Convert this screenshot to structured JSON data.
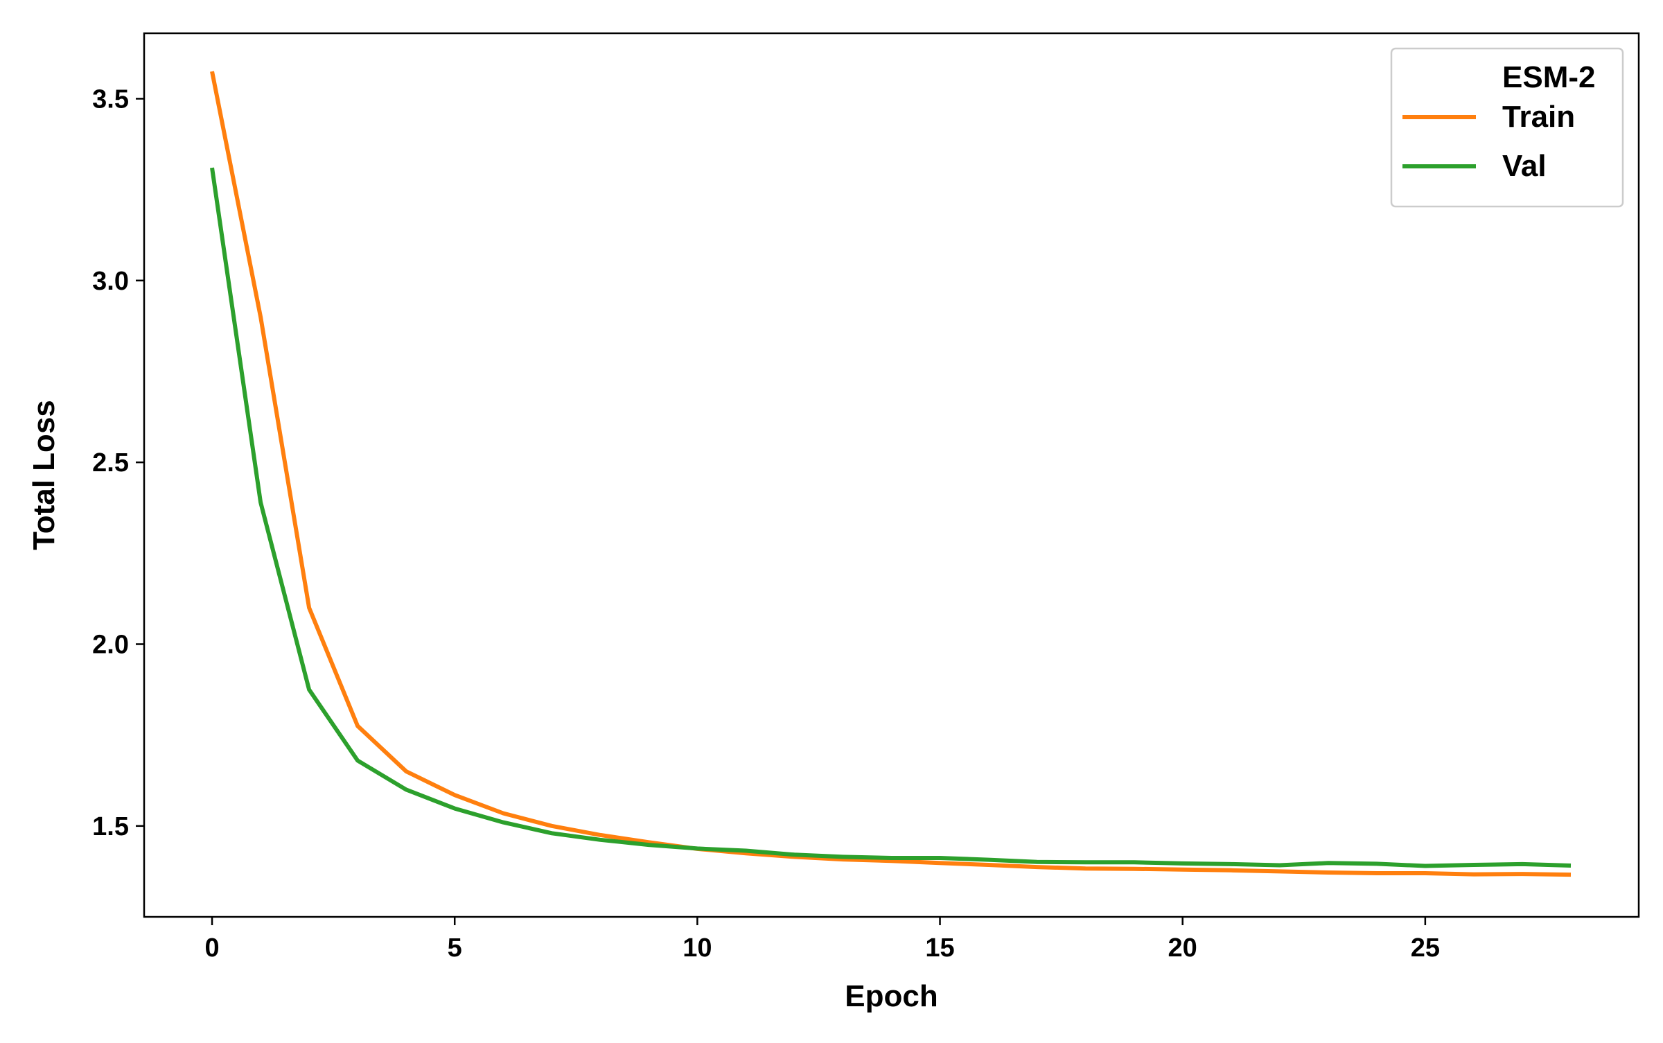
{
  "chart_data": {
    "type": "line",
    "title": "",
    "xlabel": "Epoch",
    "ylabel": "Total Loss",
    "xlim": [
      -1.4,
      29.4
    ],
    "ylim": [
      1.25,
      3.68
    ],
    "xticks": [
      0,
      5,
      10,
      15,
      20,
      25
    ],
    "yticks": [
      1.5,
      2.0,
      2.5,
      3.0,
      3.5
    ],
    "ytick_labels": [
      "1.5",
      "2.0",
      "2.5",
      "3.0",
      "3.5"
    ],
    "grid": false,
    "legend": {
      "title": "ESM-2",
      "placement": "top-right"
    },
    "x": [
      0,
      1,
      2,
      3,
      4,
      5,
      6,
      7,
      8,
      9,
      10,
      11,
      12,
      13,
      14,
      15,
      16,
      17,
      18,
      19,
      20,
      21,
      22,
      23,
      24,
      25,
      26,
      27,
      28
    ],
    "series": [
      {
        "name": "Train",
        "color": "#ff7f0e",
        "values": [
          3.575,
          2.9,
          2.1,
          1.775,
          1.65,
          1.585,
          1.535,
          1.5,
          1.475,
          1.455,
          1.437,
          1.425,
          1.415,
          1.408,
          1.404,
          1.398,
          1.393,
          1.387,
          1.383,
          1.382,
          1.38,
          1.378,
          1.375,
          1.372,
          1.37,
          1.37,
          1.367,
          1.368,
          1.366
        ]
      },
      {
        "name": "Val",
        "color": "#2ca02c",
        "values": [
          3.31,
          2.39,
          1.875,
          1.68,
          1.6,
          1.548,
          1.51,
          1.48,
          1.462,
          1.448,
          1.438,
          1.432,
          1.421,
          1.415,
          1.412,
          1.412,
          1.407,
          1.401,
          1.4,
          1.4,
          1.397,
          1.395,
          1.392,
          1.398,
          1.396,
          1.39,
          1.393,
          1.395,
          1.391
        ]
      }
    ]
  }
}
